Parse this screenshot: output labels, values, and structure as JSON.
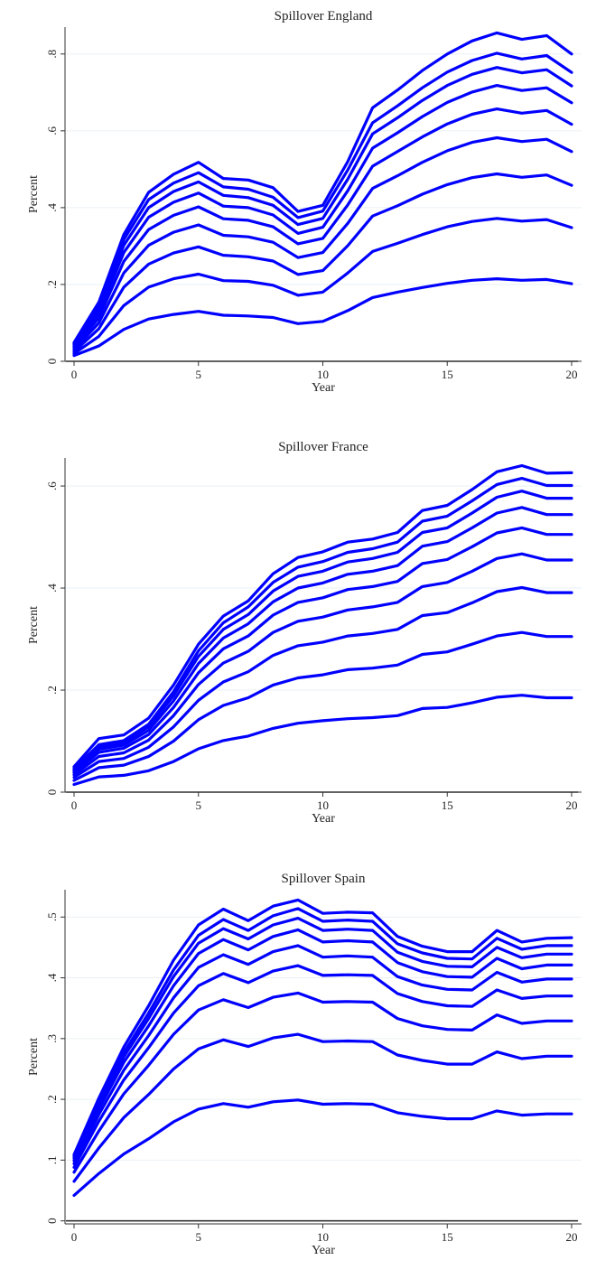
{
  "chart_data": [
    {
      "type": "line",
      "title": "Spillover England",
      "xlabel": "Year",
      "ylabel": "Percent",
      "xlim": [
        0,
        20
      ],
      "ylim": [
        0,
        0.87
      ],
      "xticks": [
        0,
        5,
        10,
        15,
        20
      ],
      "yticks": [
        0,
        0.2,
        0.4,
        0.6,
        0.8
      ],
      "ytick_labels": [
        "0",
        ".2",
        ".4",
        ".6",
        ".8"
      ],
      "grid": true,
      "color": "#0000ff",
      "x": [
        0,
        1,
        2,
        3,
        4,
        5,
        6,
        7,
        8,
        9,
        10,
        11,
        12,
        13,
        14,
        15,
        16,
        17,
        18,
        19,
        20
      ],
      "series": [
        {
          "values": [
            0.015,
            0.04,
            0.083,
            0.11,
            0.122,
            0.13,
            0.12,
            0.118,
            0.114,
            0.098,
            0.104,
            0.132,
            0.166,
            0.18,
            0.192,
            0.203,
            0.211,
            0.215,
            0.211,
            0.213,
            0.202
          ]
        },
        {
          "values": [
            0.02,
            0.065,
            0.145,
            0.193,
            0.215,
            0.227,
            0.21,
            0.208,
            0.198,
            0.172,
            0.18,
            0.23,
            0.286,
            0.307,
            0.33,
            0.35,
            0.364,
            0.372,
            0.365,
            0.369,
            0.348
          ]
        },
        {
          "values": [
            0.025,
            0.085,
            0.193,
            0.253,
            0.282,
            0.298,
            0.276,
            0.272,
            0.261,
            0.226,
            0.236,
            0.301,
            0.378,
            0.405,
            0.435,
            0.46,
            0.478,
            0.488,
            0.479,
            0.485,
            0.458
          ]
        },
        {
          "values": [
            0.03,
            0.1,
            0.23,
            0.302,
            0.336,
            0.355,
            0.328,
            0.324,
            0.31,
            0.27,
            0.283,
            0.359,
            0.45,
            0.483,
            0.518,
            0.548,
            0.57,
            0.582,
            0.572,
            0.578,
            0.546
          ]
        },
        {
          "values": [
            0.035,
            0.113,
            0.26,
            0.343,
            0.38,
            0.402,
            0.371,
            0.367,
            0.35,
            0.306,
            0.32,
            0.407,
            0.508,
            0.546,
            0.584,
            0.618,
            0.643,
            0.657,
            0.646,
            0.653,
            0.617
          ]
        },
        {
          "values": [
            0.039,
            0.125,
            0.283,
            0.375,
            0.414,
            0.438,
            0.404,
            0.4,
            0.381,
            0.333,
            0.349,
            0.444,
            0.555,
            0.595,
            0.637,
            0.674,
            0.701,
            0.718,
            0.705,
            0.712,
            0.673
          ]
        },
        {
          "values": [
            0.043,
            0.136,
            0.302,
            0.4,
            0.442,
            0.467,
            0.432,
            0.426,
            0.406,
            0.356,
            0.372,
            0.474,
            0.592,
            0.634,
            0.679,
            0.718,
            0.747,
            0.765,
            0.751,
            0.759,
            0.717
          ]
        },
        {
          "values": [
            0.046,
            0.145,
            0.317,
            0.421,
            0.464,
            0.491,
            0.454,
            0.448,
            0.427,
            0.374,
            0.391,
            0.498,
            0.621,
            0.665,
            0.712,
            0.753,
            0.783,
            0.802,
            0.787,
            0.796,
            0.752
          ]
        },
        {
          "values": [
            0.049,
            0.154,
            0.33,
            0.44,
            0.487,
            0.518,
            0.476,
            0.472,
            0.452,
            0.39,
            0.406,
            0.52,
            0.66,
            0.706,
            0.757,
            0.8,
            0.834,
            0.855,
            0.838,
            0.848,
            0.8
          ]
        }
      ]
    },
    {
      "type": "line",
      "title": "Spillover France",
      "xlabel": "Year",
      "ylabel": "Percent",
      "xlim": [
        0,
        20
      ],
      "ylim": [
        0,
        0.655
      ],
      "xticks": [
        0,
        5,
        10,
        15,
        20
      ],
      "yticks": [
        0,
        0.2,
        0.4,
        0.6
      ],
      "ytick_labels": [
        "0",
        ".2",
        ".4",
        ".6"
      ],
      "grid": true,
      "color": "#0000ff",
      "x": [
        0,
        1,
        2,
        3,
        4,
        5,
        6,
        7,
        8,
        9,
        10,
        11,
        12,
        13,
        14,
        15,
        16,
        17,
        18,
        19,
        20
      ],
      "series": [
        {
          "values": [
            0.015,
            0.03,
            0.033,
            0.042,
            0.06,
            0.085,
            0.101,
            0.11,
            0.125,
            0.135,
            0.14,
            0.144,
            0.146,
            0.15,
            0.164,
            0.166,
            0.175,
            0.186,
            0.19,
            0.185,
            0.185
          ]
        },
        {
          "values": [
            0.023,
            0.048,
            0.053,
            0.07,
            0.1,
            0.142,
            0.17,
            0.185,
            0.21,
            0.224,
            0.23,
            0.24,
            0.243,
            0.249,
            0.27,
            0.275,
            0.29,
            0.306,
            0.313,
            0.305,
            0.305
          ]
        },
        {
          "values": [
            0.029,
            0.06,
            0.066,
            0.088,
            0.128,
            0.18,
            0.216,
            0.236,
            0.268,
            0.287,
            0.294,
            0.306,
            0.311,
            0.319,
            0.346,
            0.352,
            0.371,
            0.393,
            0.401,
            0.391,
            0.391
          ]
        },
        {
          "values": [
            0.034,
            0.07,
            0.077,
            0.102,
            0.15,
            0.211,
            0.253,
            0.276,
            0.313,
            0.335,
            0.343,
            0.357,
            0.363,
            0.372,
            0.403,
            0.411,
            0.433,
            0.458,
            0.467,
            0.455,
            0.455
          ]
        },
        {
          "values": [
            0.038,
            0.078,
            0.086,
            0.113,
            0.166,
            0.234,
            0.281,
            0.306,
            0.347,
            0.372,
            0.381,
            0.397,
            0.403,
            0.413,
            0.448,
            0.456,
            0.481,
            0.508,
            0.518,
            0.505,
            0.505
          ]
        },
        {
          "values": [
            0.041,
            0.084,
            0.092,
            0.121,
            0.179,
            0.252,
            0.302,
            0.33,
            0.373,
            0.4,
            0.41,
            0.427,
            0.433,
            0.444,
            0.482,
            0.491,
            0.518,
            0.547,
            0.558,
            0.544,
            0.544
          ]
        },
        {
          "values": [
            0.044,
            0.089,
            0.097,
            0.128,
            0.189,
            0.266,
            0.319,
            0.348,
            0.394,
            0.423,
            0.433,
            0.451,
            0.458,
            0.47,
            0.509,
            0.518,
            0.547,
            0.578,
            0.59,
            0.576,
            0.576
          ]
        },
        {
          "values": [
            0.046,
            0.093,
            0.101,
            0.133,
            0.197,
            0.277,
            0.332,
            0.363,
            0.411,
            0.441,
            0.452,
            0.47,
            0.477,
            0.49,
            0.531,
            0.541,
            0.571,
            0.603,
            0.615,
            0.601,
            0.601
          ]
        },
        {
          "values": [
            0.05,
            0.105,
            0.112,
            0.145,
            0.21,
            0.29,
            0.345,
            0.375,
            0.428,
            0.46,
            0.471,
            0.49,
            0.496,
            0.509,
            0.552,
            0.562,
            0.593,
            0.628,
            0.64,
            0.625,
            0.626
          ]
        }
      ]
    },
    {
      "type": "line",
      "title": "Spillover Spain",
      "xlabel": "Year",
      "ylabel": "Percent",
      "xlim": [
        0,
        20
      ],
      "ylim": [
        -0.005,
        0.545
      ],
      "xticks": [
        0,
        5,
        10,
        15,
        20
      ],
      "yticks": [
        0,
        0.1,
        0.2,
        0.3,
        0.4,
        0.5
      ],
      "ytick_labels": [
        "0",
        ".1",
        ".2",
        ".3",
        ".4",
        ".5"
      ],
      "grid": true,
      "color": "#0000ff",
      "x": [
        0,
        1,
        2,
        3,
        4,
        5,
        6,
        7,
        8,
        9,
        10,
        11,
        12,
        13,
        14,
        15,
        16,
        17,
        18,
        19,
        20
      ],
      "series": [
        {
          "values": [
            0.042,
            0.078,
            0.11,
            0.135,
            0.163,
            0.184,
            0.193,
            0.187,
            0.196,
            0.199,
            0.192,
            0.193,
            0.192,
            0.178,
            0.172,
            0.168,
            0.168,
            0.181,
            0.174,
            0.176,
            0.176
          ]
        },
        {
          "values": [
            0.065,
            0.12,
            0.17,
            0.208,
            0.25,
            0.283,
            0.298,
            0.287,
            0.301,
            0.307,
            0.295,
            0.296,
            0.295,
            0.273,
            0.264,
            0.258,
            0.258,
            0.278,
            0.267,
            0.271,
            0.271
          ]
        },
        {
          "values": [
            0.08,
            0.148,
            0.209,
            0.256,
            0.307,
            0.347,
            0.364,
            0.351,
            0.368,
            0.375,
            0.36,
            0.361,
            0.36,
            0.333,
            0.321,
            0.315,
            0.314,
            0.339,
            0.325,
            0.329,
            0.329
          ]
        },
        {
          "values": [
            0.088,
            0.164,
            0.232,
            0.285,
            0.342,
            0.387,
            0.407,
            0.392,
            0.411,
            0.42,
            0.404,
            0.405,
            0.404,
            0.374,
            0.361,
            0.354,
            0.353,
            0.38,
            0.366,
            0.37,
            0.37
          ]
        },
        {
          "values": [
            0.094,
            0.175,
            0.248,
            0.305,
            0.367,
            0.417,
            0.438,
            0.422,
            0.443,
            0.453,
            0.434,
            0.436,
            0.434,
            0.402,
            0.388,
            0.381,
            0.38,
            0.409,
            0.393,
            0.398,
            0.398
          ]
        },
        {
          "values": [
            0.099,
            0.184,
            0.261,
            0.321,
            0.387,
            0.44,
            0.463,
            0.446,
            0.468,
            0.479,
            0.459,
            0.461,
            0.459,
            0.425,
            0.41,
            0.402,
            0.401,
            0.432,
            0.415,
            0.421,
            0.421
          ]
        },
        {
          "values": [
            0.103,
            0.191,
            0.27,
            0.333,
            0.402,
            0.457,
            0.481,
            0.464,
            0.487,
            0.498,
            0.478,
            0.48,
            0.478,
            0.442,
            0.427,
            0.419,
            0.418,
            0.45,
            0.433,
            0.439,
            0.439
          ]
        },
        {
          "values": [
            0.106,
            0.196,
            0.277,
            0.342,
            0.413,
            0.47,
            0.496,
            0.478,
            0.502,
            0.514,
            0.493,
            0.495,
            0.493,
            0.456,
            0.441,
            0.432,
            0.431,
            0.465,
            0.447,
            0.453,
            0.453
          ]
        },
        {
          "values": [
            0.109,
            0.202,
            0.286,
            0.354,
            0.429,
            0.487,
            0.513,
            0.494,
            0.518,
            0.528,
            0.506,
            0.508,
            0.507,
            0.468,
            0.452,
            0.443,
            0.443,
            0.478,
            0.459,
            0.465,
            0.466
          ]
        }
      ]
    }
  ]
}
